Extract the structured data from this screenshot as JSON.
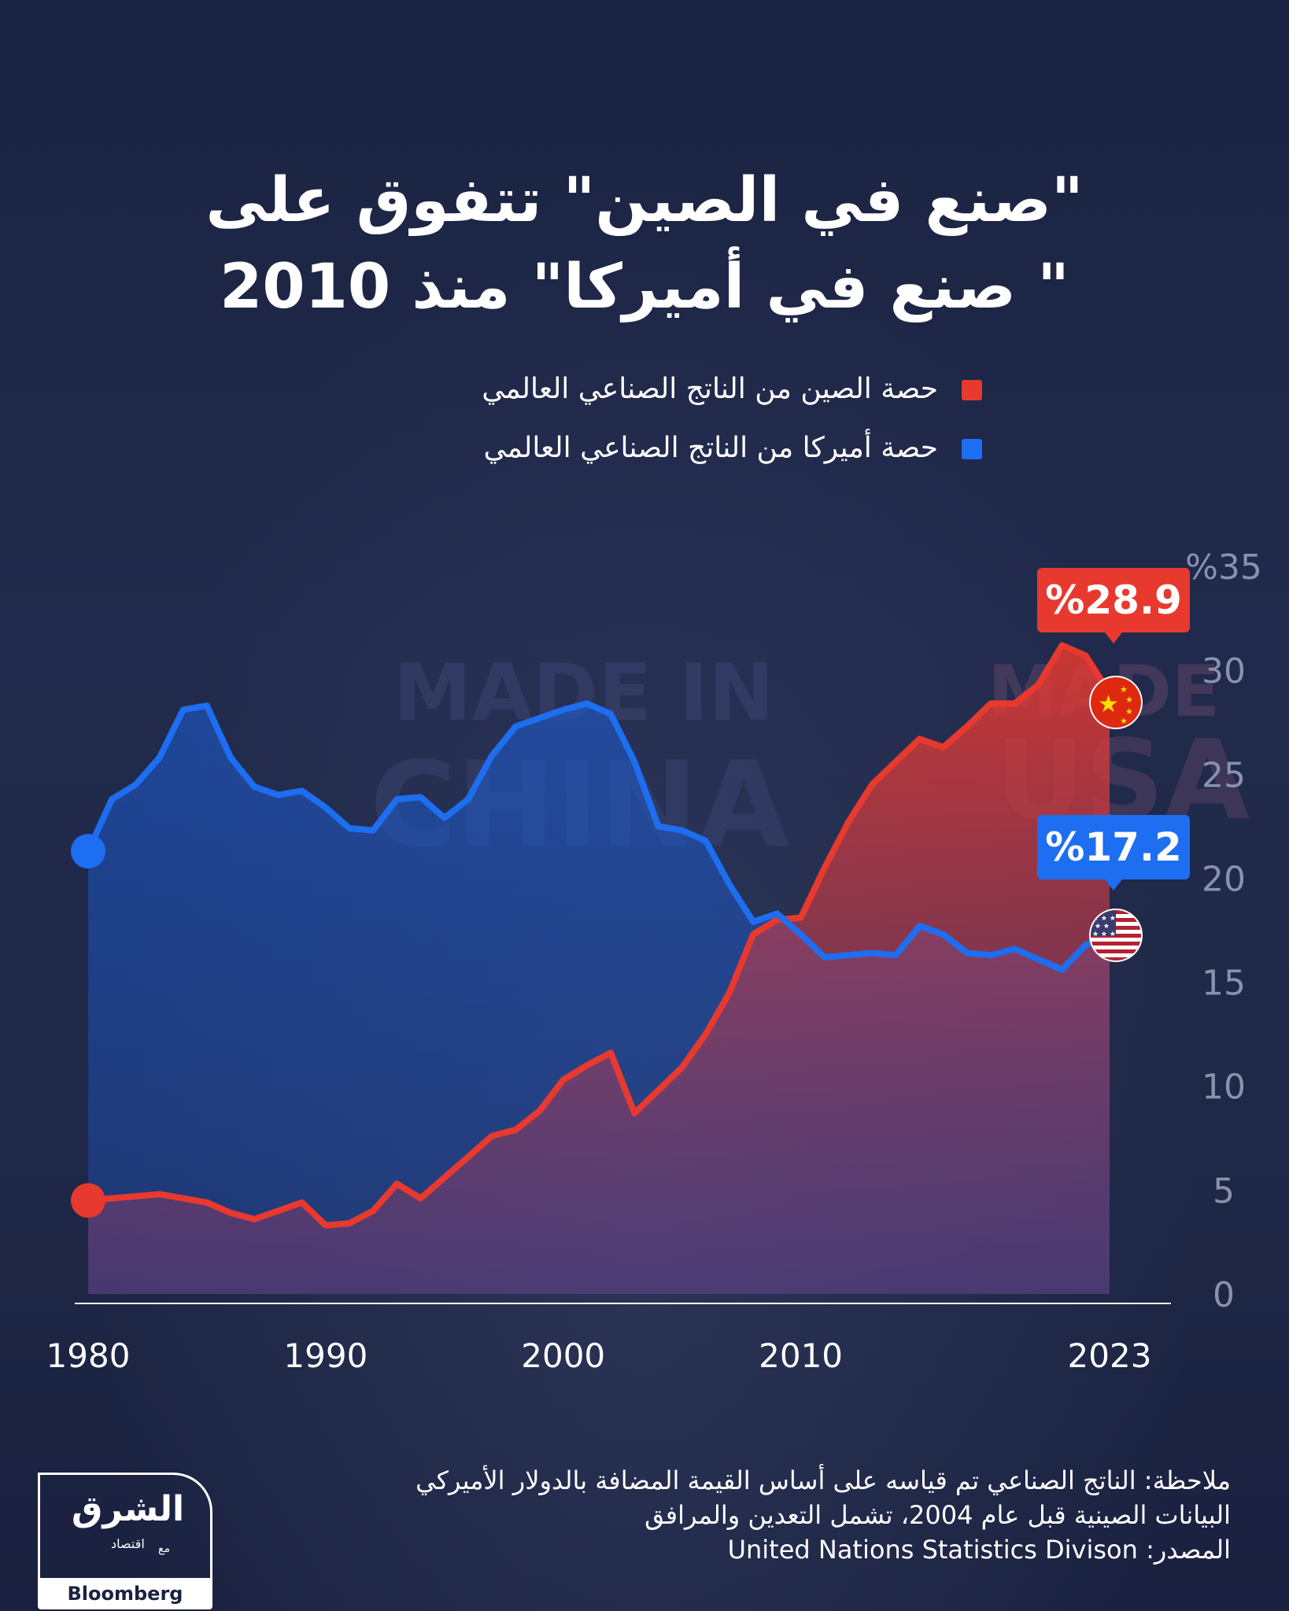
{
  "title": {
    "line1": "\"صنع في الصين\" تتفوق على",
    "line2": "\" صنع في أميركا\" منذ 2010"
  },
  "legend": {
    "china": "حصة الصين من الناتج الصناعي العالمي",
    "usa": "حصة أميركا من الناتج الصناعي العالمي"
  },
  "colors": {
    "china": "#e8392e",
    "usa": "#1d6ef0",
    "background": "#1b2240"
  },
  "background_text": {
    "china_1": "MADE IN",
    "china_2": "CHINA",
    "usa_1": "MADE",
    "usa_2": "USA"
  },
  "chart_data": {
    "type": "line",
    "title": "\"صنع في الصين\" تتفوق على \" صنع في أميركا\" منذ 2010",
    "xlabel": "",
    "ylabel": "",
    "ylim": [
      0,
      35
    ],
    "xlim": [
      1980,
      2023
    ],
    "x_ticks": [
      "1980",
      "1990",
      "2000",
      "2010",
      "2023"
    ],
    "y_ticks": [
      "0",
      "5",
      "10",
      "15",
      "20",
      "25",
      "30",
      "%35"
    ],
    "x": [
      1980,
      1981,
      1982,
      1983,
      1984,
      1985,
      1986,
      1987,
      1988,
      1989,
      1990,
      1991,
      1992,
      1993,
      1994,
      1995,
      1996,
      1997,
      1998,
      1999,
      2000,
      2001,
      2002,
      2003,
      2004,
      2005,
      2006,
      2007,
      2008,
      2009,
      2010,
      2011,
      2012,
      2013,
      2014,
      2015,
      2016,
      2017,
      2018,
      2019,
      2020,
      2021,
      2022,
      2023
    ],
    "series": [
      {
        "name": "حصة الصين من الناتج الصناعي العالمي",
        "color": "#e8392e",
        "values": [
          4.5,
          4.6,
          4.7,
          4.8,
          4.6,
          4.4,
          3.9,
          3.6,
          4.0,
          4.4,
          3.3,
          3.4,
          4.0,
          5.3,
          4.6,
          5.6,
          6.6,
          7.6,
          7.9,
          8.8,
          10.3,
          11.0,
          11.6,
          8.7,
          9.8,
          10.9,
          12.5,
          14.5,
          17.3,
          18.0,
          18.1,
          20.5,
          22.7,
          24.5,
          25.6,
          26.7,
          26.3,
          27.3,
          28.4,
          28.4,
          29.3,
          31.2,
          30.7,
          28.9
        ]
      },
      {
        "name": "حصة أميركا من الناتج الصناعي العالمي",
        "color": "#1d6ef0",
        "values": [
          21.3,
          23.8,
          24.5,
          25.8,
          28.1,
          28.3,
          25.8,
          24.4,
          24.0,
          24.2,
          23.4,
          22.4,
          22.3,
          23.8,
          23.9,
          22.9,
          23.8,
          25.9,
          27.3,
          27.7,
          28.1,
          28.4,
          27.9,
          25.6,
          22.5,
          22.3,
          21.8,
          19.7,
          17.9,
          18.3,
          17.3,
          16.2,
          16.3,
          16.4,
          16.3,
          17.7,
          17.3,
          16.4,
          16.3,
          16.6,
          16.1,
          15.6,
          16.8,
          17.2
        ]
      }
    ],
    "annotations": [
      {
        "series": "china",
        "year": 2023,
        "label": "%28.9"
      },
      {
        "series": "usa",
        "year": 2023,
        "label": "%17.2"
      }
    ]
  },
  "notes": {
    "line1": "ملاحظة: الناتج الصناعي تم قياسه على أساس القيمة المضافة بالدولار الأميركي",
    "line2": "البيانات الصينية قبل عام 2004، تشمل التعدين والمرافق",
    "line3": "المصدر: United Nations Statistics Divison"
  },
  "logo": {
    "main": "الشرق",
    "sub": "اقتصاد",
    "with": "مع",
    "partner": "Bloomberg"
  }
}
